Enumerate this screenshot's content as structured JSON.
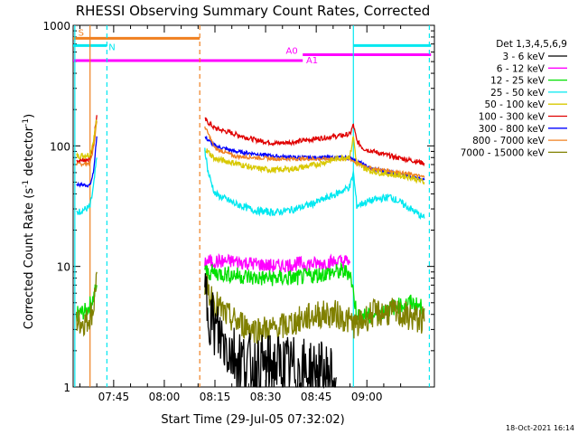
{
  "chart_data": {
    "type": "line",
    "title": "RHESSI Observing Summary Count Rates, Corrected",
    "xlabel": "Start Time (29-Jul-05 07:32:02)",
    "ylabel_parts": {
      "main": "Corrected Count Rate (s",
      "sup1": "-1",
      "mid": " detector",
      "sup2": "-1",
      "end": ")"
    },
    "yscale": "log",
    "ylim": [
      1,
      1000
    ],
    "xlim_minutes": [
      -12,
      95
    ],
    "x_ticks": [
      {
        "m": 0,
        "label": "07:45"
      },
      {
        "m": 15,
        "label": "08:00"
      },
      {
        "m": 30,
        "label": "08:15"
      },
      {
        "m": 45,
        "label": "08:30"
      },
      {
        "m": 60,
        "label": "08:45"
      },
      {
        "m": 75,
        "label": "09:00"
      }
    ],
    "y_ticks": [
      {
        "v": 1,
        "label": "1"
      },
      {
        "v": 10,
        "label": "10"
      },
      {
        "v": 100,
        "label": "100"
      },
      {
        "v": 1000,
        "label": "1000"
      }
    ],
    "legend_title": "Det 1,3,4,5,6,9",
    "series": [
      {
        "name": "3 - 6 keV",
        "color": "#000000"
      },
      {
        "name": "6 - 12 keV",
        "color": "#ff00ff"
      },
      {
        "name": "12 - 25 keV",
        "color": "#00e000"
      },
      {
        "name": "25 - 50 keV",
        "color": "#00e8f0"
      },
      {
        "name": "50 - 100 keV",
        "color": "#d8c800"
      },
      {
        "name": "100 - 300 keV",
        "color": "#e00000"
      },
      {
        "name": "300 - 800 keV",
        "color": "#0000ff"
      },
      {
        "name": "800 - 7000 keV",
        "color": "#f08020"
      },
      {
        "name": "7000 - 15000 keV",
        "color": "#808000"
      }
    ],
    "segments": [
      {
        "series": "100 - 300 keV",
        "points": [
          [
            -11,
            75
          ],
          [
            -7,
            78
          ],
          [
            -6,
            105
          ],
          [
            -5,
            180
          ]
        ]
      },
      {
        "series": "300 - 800 keV",
        "points": [
          [
            -11,
            48
          ],
          [
            -7,
            47
          ],
          [
            -6,
            60
          ],
          [
            -5,
            120
          ]
        ]
      },
      {
        "series": "800 - 7000 keV",
        "points": [
          [
            -11,
            70
          ],
          [
            -7,
            72
          ],
          [
            -6,
            95
          ],
          [
            -5,
            160
          ]
        ]
      },
      {
        "series": "50 - 100 keV",
        "points": [
          [
            -11,
            82
          ],
          [
            -7,
            85
          ],
          [
            -6,
            110
          ],
          [
            -5,
            165
          ]
        ]
      },
      {
        "series": "25 - 50 keV",
        "points": [
          [
            -11,
            28
          ],
          [
            -7,
            31
          ],
          [
            -6,
            45
          ],
          [
            -5,
            80
          ]
        ]
      },
      {
        "series": "12 - 25 keV",
        "points": [
          [
            -11,
            4
          ],
          [
            -8,
            4.3
          ],
          [
            -6,
            5.5
          ],
          [
            -5,
            7
          ]
        ]
      },
      {
        "series": "7000 - 15000 keV",
        "points": [
          [
            -11,
            3.5
          ],
          [
            -8,
            3.5
          ],
          [
            -6,
            4.5
          ],
          [
            -5,
            9
          ]
        ]
      },
      {
        "series": "100 - 300 keV",
        "points": [
          [
            27,
            165
          ],
          [
            30,
            140
          ],
          [
            36,
            125
          ],
          [
            42,
            112
          ],
          [
            48,
            105
          ],
          [
            54,
            108
          ],
          [
            60,
            115
          ],
          [
            66,
            120
          ],
          [
            70,
            125
          ],
          [
            71,
            150
          ],
          [
            72,
            110
          ],
          [
            74,
            95
          ],
          [
            80,
            85
          ],
          [
            84,
            80
          ],
          [
            88,
            76
          ],
          [
            92,
            72
          ]
        ]
      },
      {
        "series": "300 - 800 keV",
        "points": [
          [
            27,
            118
          ],
          [
            30,
            100
          ],
          [
            36,
            90
          ],
          [
            42,
            86
          ],
          [
            48,
            82
          ],
          [
            54,
            80
          ],
          [
            60,
            80
          ],
          [
            66,
            80
          ],
          [
            70,
            80
          ],
          [
            72,
            75
          ],
          [
            76,
            65
          ],
          [
            82,
            60
          ],
          [
            88,
            56
          ],
          [
            92,
            52
          ]
        ]
      },
      {
        "series": "800 - 7000 keV",
        "points": [
          [
            27,
            145
          ],
          [
            30,
            95
          ],
          [
            36,
            82
          ],
          [
            42,
            80
          ],
          [
            48,
            78
          ],
          [
            54,
            78
          ],
          [
            60,
            78
          ],
          [
            66,
            78
          ],
          [
            70,
            78
          ],
          [
            72,
            72
          ],
          [
            76,
            65
          ],
          [
            82,
            62
          ],
          [
            88,
            58
          ],
          [
            92,
            55
          ]
        ]
      },
      {
        "series": "50 - 100 keV",
        "points": [
          [
            27,
            95
          ],
          [
            30,
            78
          ],
          [
            36,
            72
          ],
          [
            42,
            65
          ],
          [
            48,
            63
          ],
          [
            54,
            65
          ],
          [
            60,
            70
          ],
          [
            66,
            78
          ],
          [
            70,
            82
          ],
          [
            71,
            120
          ],
          [
            72,
            70
          ],
          [
            76,
            62
          ],
          [
            82,
            58
          ],
          [
            88,
            55
          ],
          [
            92,
            50
          ]
        ]
      },
      {
        "series": "25 - 50 keV",
        "points": [
          [
            27,
            95
          ],
          [
            28,
            60
          ],
          [
            30,
            40
          ],
          [
            36,
            33
          ],
          [
            42,
            29
          ],
          [
            48,
            28
          ],
          [
            54,
            30
          ],
          [
            60,
            34
          ],
          [
            66,
            40
          ],
          [
            70,
            46
          ],
          [
            71,
            60
          ],
          [
            72,
            32
          ],
          [
            76,
            35
          ],
          [
            82,
            38
          ],
          [
            88,
            30
          ],
          [
            92,
            25
          ]
        ]
      },
      {
        "series": "6 - 12 keV",
        "points": [
          [
            27,
            11
          ],
          [
            36,
            11
          ],
          [
            42,
            10.5
          ],
          [
            48,
            10
          ],
          [
            54,
            10.5
          ],
          [
            60,
            10.5
          ],
          [
            66,
            11
          ],
          [
            70,
            11
          ]
        ]
      },
      {
        "series": "12 - 25 keV",
        "points": [
          [
            27,
            9
          ],
          [
            36,
            8.5
          ],
          [
            42,
            8
          ],
          [
            48,
            8
          ],
          [
            54,
            8
          ],
          [
            60,
            8.5
          ],
          [
            66,
            9
          ],
          [
            70,
            9
          ],
          [
            72,
            4
          ],
          [
            76,
            3.8
          ],
          [
            82,
            4.5
          ],
          [
            88,
            5
          ],
          [
            92,
            4.5
          ]
        ]
      },
      {
        "series": "7000 - 15000 keV",
        "points": [
          [
            27,
            7
          ],
          [
            30,
            5
          ],
          [
            33,
            4
          ],
          [
            36,
            3.5
          ],
          [
            42,
            3
          ],
          [
            48,
            3
          ],
          [
            54,
            3.5
          ],
          [
            60,
            4
          ],
          [
            66,
            4
          ],
          [
            70,
            3.5
          ],
          [
            72,
            3.2
          ],
          [
            76,
            4
          ],
          [
            82,
            4.2
          ],
          [
            88,
            3.8
          ],
          [
            92,
            3.5
          ]
        ]
      },
      {
        "series": "3 - 6 keV",
        "points": [
          [
            27,
            6
          ],
          [
            30,
            3
          ],
          [
            33,
            2.3
          ],
          [
            36,
            1.8
          ],
          [
            42,
            1.4
          ],
          [
            48,
            1.5
          ],
          [
            54,
            1.4
          ],
          [
            60,
            1.3
          ],
          [
            66,
            1.2
          ]
        ]
      }
    ],
    "attenuator_bars": [
      {
        "label": "S",
        "start": -12,
        "end": 25.5,
        "value": 780,
        "color": "#f08020"
      },
      {
        "label": "N",
        "start": -12,
        "end": -2,
        "value": 680,
        "color": "#00e8f0"
      },
      {
        "label": "N",
        "start": 71,
        "end": 94,
        "value": 680,
        "color": "#00e8f0"
      },
      {
        "label": "A0",
        "start": 56,
        "end": 94,
        "value": 570,
        "color": "#ff00ff"
      },
      {
        "label": "A1",
        "start": -12,
        "end": 56,
        "value": 510,
        "color": "#ff00ff"
      }
    ],
    "vertical_markers": [
      {
        "m": -7,
        "style": "solid",
        "color": "#f08020"
      },
      {
        "m": 25.5,
        "style": "dashed",
        "color": "#f08020"
      },
      {
        "m": -11.5,
        "style": "solid",
        "color": "#00e8f0"
      },
      {
        "m": -2,
        "style": "dashed",
        "color": "#00e8f0"
      },
      {
        "m": 71,
        "style": "solid",
        "color": "#00e8f0"
      },
      {
        "m": 93.5,
        "style": "dashed",
        "color": "#00e8f0"
      }
    ],
    "footer_date": "18-Oct-2021 16:14"
  }
}
